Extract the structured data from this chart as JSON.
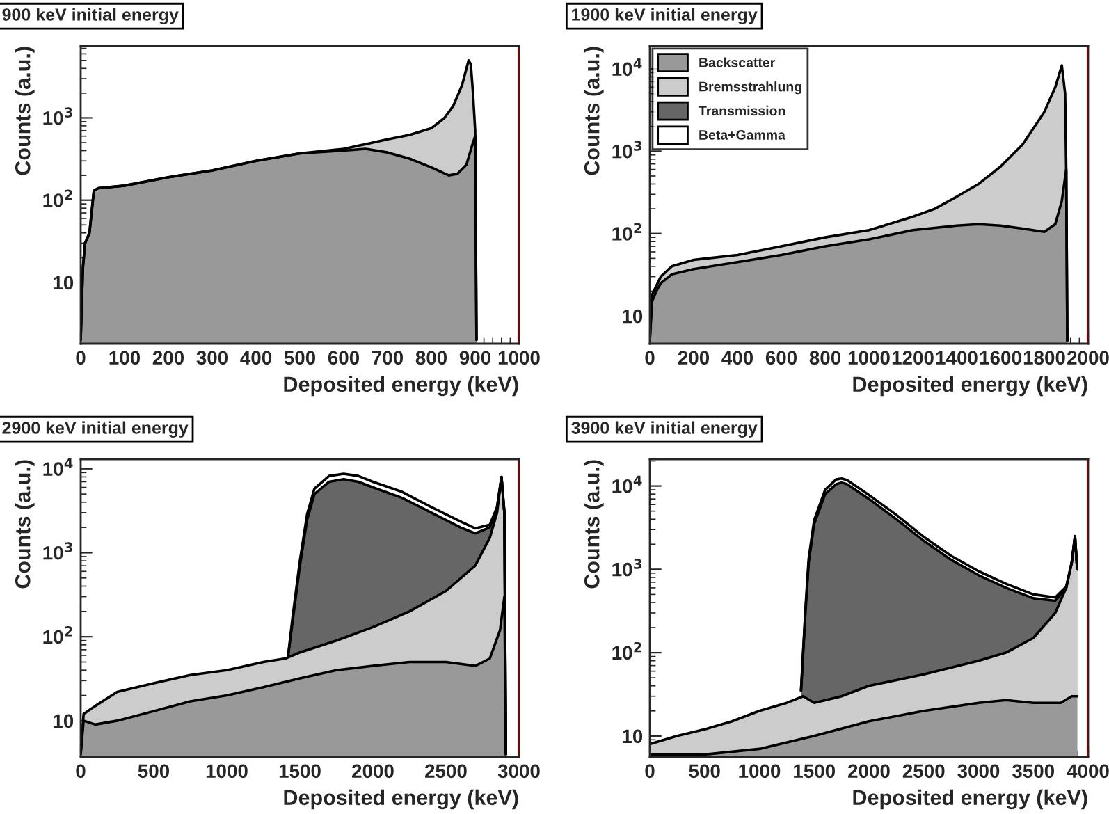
{
  "chart_data": [
    {
      "type": "area",
      "title": "900 keV initial energy",
      "xlabel": "Deposited energy (keV)",
      "ylabel": "Counts (a.u.)",
      "log": "y",
      "legend": false,
      "xlim": [
        0,
        1000
      ],
      "xticks": [
        0,
        100,
        200,
        300,
        400,
        500,
        600,
        700,
        800,
        900,
        1000
      ],
      "ylim": [
        1.8,
        7500
      ],
      "yticks": [
        {
          "value": 10,
          "label": "10"
        },
        {
          "value": 100,
          "label": "10$^{2}$"
        },
        {
          "value": 1000,
          "label": "10$^{3}$"
        }
      ],
      "ref_lines": [
        {
          "axis": "x",
          "value": 1000,
          "color": "#cc0000"
        }
      ],
      "series": [
        {
          "color": "#999999",
          "x": [
            0,
            5,
            10,
            20,
            30,
            40,
            100,
            200,
            300,
            400,
            500,
            600,
            650,
            700,
            750,
            800,
            840,
            860,
            880,
            895,
            900,
            903
          ],
          "values": [
            2,
            15,
            30,
            40,
            130,
            140,
            150,
            190,
            230,
            300,
            370,
            400,
            420,
            380,
            320,
            250,
            200,
            210,
            270,
            500,
            600,
            2
          ]
        },
        {
          "color": "#cccccc",
          "x": [
            0,
            5,
            10,
            20,
            30,
            40,
            100,
            200,
            300,
            400,
            500,
            600,
            650,
            700,
            750,
            800,
            830,
            850,
            870,
            885,
            890,
            895,
            900,
            903
          ],
          "values": [
            2,
            15,
            30,
            40,
            130,
            140,
            150,
            190,
            230,
            300,
            370,
            420,
            480,
            550,
            620,
            750,
            1000,
            1400,
            2500,
            5000,
            4500,
            2000,
            700,
            2
          ]
        }
      ]
    },
    {
      "type": "area",
      "title": "1900 keV initial energy",
      "xlabel": "Deposited energy (keV)",
      "ylabel": "Counts (a.u.)",
      "log": "y",
      "legend": "top left",
      "xlim": [
        0,
        2000
      ],
      "xticks": [
        0,
        200,
        400,
        600,
        800,
        1000,
        1200,
        1400,
        1600,
        1800,
        2000
      ],
      "ylim": [
        4.6,
        19000
      ],
      "yticks": [
        {
          "value": 10,
          "label": "10"
        },
        {
          "value": 100,
          "label": "10$^{2}$"
        },
        {
          "value": 1000,
          "label": "10$^{3}$"
        },
        {
          "value": 10000,
          "label": "10$^{4}$"
        }
      ],
      "ref_lines": [
        {
          "axis": "x",
          "value": 2000,
          "color": "#cc0000"
        }
      ],
      "series": [
        {
          "name": "Backscatter",
          "color": "#999999",
          "x": [
            0,
            10,
            30,
            50,
            100,
            200,
            400,
            600,
            800,
            1000,
            1200,
            1400,
            1500,
            1600,
            1700,
            1800,
            1850,
            1880,
            1900,
            1905
          ],
          "values": [
            5,
            15,
            20,
            25,
            32,
            37,
            45,
            55,
            70,
            85,
            110,
            125,
            130,
            125,
            115,
            105,
            130,
            250,
            600,
            5
          ]
        },
        {
          "name": "Bremsstrahlung",
          "color": "#cccccc",
          "x": [
            0,
            10,
            50,
            100,
            200,
            400,
            600,
            800,
            1000,
            1200,
            1300,
            1400,
            1500,
            1600,
            1700,
            1800,
            1850,
            1880,
            1895,
            1900,
            1905
          ],
          "values": [
            5,
            18,
            30,
            40,
            48,
            55,
            70,
            90,
            110,
            160,
            200,
            280,
            400,
            650,
            1200,
            3000,
            6000,
            11000,
            5000,
            600,
            5
          ]
        },
        {
          "name": "Transmission",
          "color": "#666666"
        },
        {
          "name": "Beta+Gamma",
          "color": "#ffffff"
        }
      ]
    },
    {
      "type": "area",
      "title": "2900 keV initial energy",
      "xlabel": "Deposited energy (keV)",
      "ylabel": "Counts (a.u.)",
      "log": "y",
      "legend": false,
      "xlim": [
        0,
        3000
      ],
      "xticks": [
        0,
        500,
        1000,
        1500,
        2000,
        2500,
        3000
      ],
      "ylim": [
        3.7,
        13000
      ],
      "yticks": [
        {
          "value": 10,
          "label": "10"
        },
        {
          "value": 100,
          "label": "10$^{2}$"
        },
        {
          "value": 1000,
          "label": "10$^{3}$"
        },
        {
          "value": 10000,
          "label": "10$^{4}$"
        }
      ],
      "ref_lines": [
        {
          "axis": "x",
          "value": 3000,
          "color": "#cc0000"
        }
      ],
      "series": [
        {
          "color": "#999999",
          "x": [
            0,
            20,
            100,
            250,
            500,
            750,
            1000,
            1250,
            1500,
            1750,
            2000,
            2250,
            2500,
            2700,
            2800,
            2870,
            2900,
            2910
          ],
          "values": [
            4,
            10,
            9,
            10,
            13,
            17,
            20,
            25,
            32,
            40,
            45,
            50,
            50,
            45,
            55,
            120,
            300,
            4
          ]
        },
        {
          "color": "#cccccc",
          "x": [
            0,
            20,
            100,
            250,
            500,
            750,
            1000,
            1250,
            1400,
            1500,
            1750,
            2000,
            2250,
            2500,
            2700,
            2800,
            2850,
            2880,
            2900,
            2910
          ],
          "values": [
            4,
            12,
            15,
            22,
            28,
            35,
            40,
            50,
            55,
            65,
            90,
            130,
            200,
            350,
            700,
            1500,
            3000,
            8000,
            3000,
            4
          ]
        },
        {
          "color": "#666666",
          "x": [
            1420,
            1450,
            1500,
            1550,
            1600,
            1700,
            1800,
            1900,
            2000,
            2200,
            2400,
            2600,
            2700,
            2800,
            2850,
            2880,
            2900,
            2910
          ],
          "values": [
            60,
            150,
            700,
            2500,
            5000,
            7000,
            7500,
            7000,
            6000,
            4500,
            3000,
            2000,
            1700,
            2000,
            3500,
            8000,
            3000,
            4
          ]
        },
        {
          "color": "#ffffff",
          "x": [
            1420,
            1450,
            1500,
            1550,
            1600,
            1700,
            1800,
            1900,
            2000,
            2200,
            2400,
            2600,
            2700,
            2800,
            2850,
            2880,
            2900,
            2910
          ],
          "values": [
            60,
            170,
            800,
            2900,
            5800,
            8200,
            8700,
            8200,
            7000,
            5300,
            3500,
            2350,
            1950,
            2150,
            3500,
            8000,
            3000,
            4
          ]
        }
      ]
    },
    {
      "type": "area",
      "title": "3900 keV initial energy",
      "xlabel": "Deposited energy (keV)",
      "ylabel": "Counts (a.u.)",
      "log": "y",
      "legend": false,
      "xlim": [
        0,
        4000
      ],
      "xticks": [
        0,
        500,
        1000,
        1500,
        2000,
        2500,
        3000,
        3500,
        4000
      ],
      "ylim": [
        5.6,
        21000
      ],
      "yticks": [
        {
          "value": 10,
          "label": "10"
        },
        {
          "value": 100,
          "label": "10$^{2}$"
        },
        {
          "value": 1000,
          "label": "10$^{3}$"
        },
        {
          "value": 10000,
          "label": "10$^{4}$"
        }
      ],
      "ref_lines": [
        {
          "axis": "x",
          "value": 4000,
          "color": "#cc0000"
        }
      ],
      "series": [
        {
          "color": "#999999",
          "x": [
            0,
            500,
            1000,
            1500,
            2000,
            2500,
            3000,
            3250,
            3500,
            3750,
            3850,
            3900
          ],
          "values": [
            6,
            6,
            7,
            10,
            15,
            20,
            25,
            27,
            25,
            25,
            30,
            30
          ]
        },
        {
          "color": "#cccccc",
          "x": [
            0,
            250,
            500,
            750,
            1000,
            1250,
            1400,
            1500,
            1750,
            2000,
            2500,
            3000,
            3250,
            3500,
            3700,
            3800,
            3850,
            3880,
            3900
          ],
          "values": [
            8,
            10,
            12,
            15,
            20,
            25,
            30,
            25,
            30,
            40,
            55,
            80,
            100,
            150,
            300,
            600,
            1200,
            2500,
            1000
          ]
        },
        {
          "color": "#666666",
          "x": [
            1380,
            1420,
            1450,
            1500,
            1600,
            1700,
            1750,
            1800,
            2000,
            2250,
            2500,
            2750,
            3000,
            3250,
            3500,
            3700,
            3800,
            3850,
            3880,
            3900
          ],
          "values": [
            35,
            300,
            1200,
            3500,
            8000,
            10500,
            11000,
            10500,
            7000,
            4000,
            2200,
            1300,
            850,
            600,
            450,
            420,
            600,
            1200,
            2500,
            1000
          ]
        },
        {
          "color": "#ffffff",
          "x": [
            1380,
            1420,
            1450,
            1500,
            1600,
            1700,
            1750,
            1800,
            2000,
            2250,
            2500,
            2750,
            3000,
            3250,
            3500,
            3700,
            3800,
            3850,
            3880,
            3900
          ],
          "values": [
            35,
            330,
            1350,
            3900,
            9000,
            12000,
            12300,
            11800,
            7800,
            4500,
            2450,
            1450,
            950,
            670,
            500,
            460,
            620,
            1200,
            2500,
            1000
          ]
        }
      ]
    }
  ]
}
